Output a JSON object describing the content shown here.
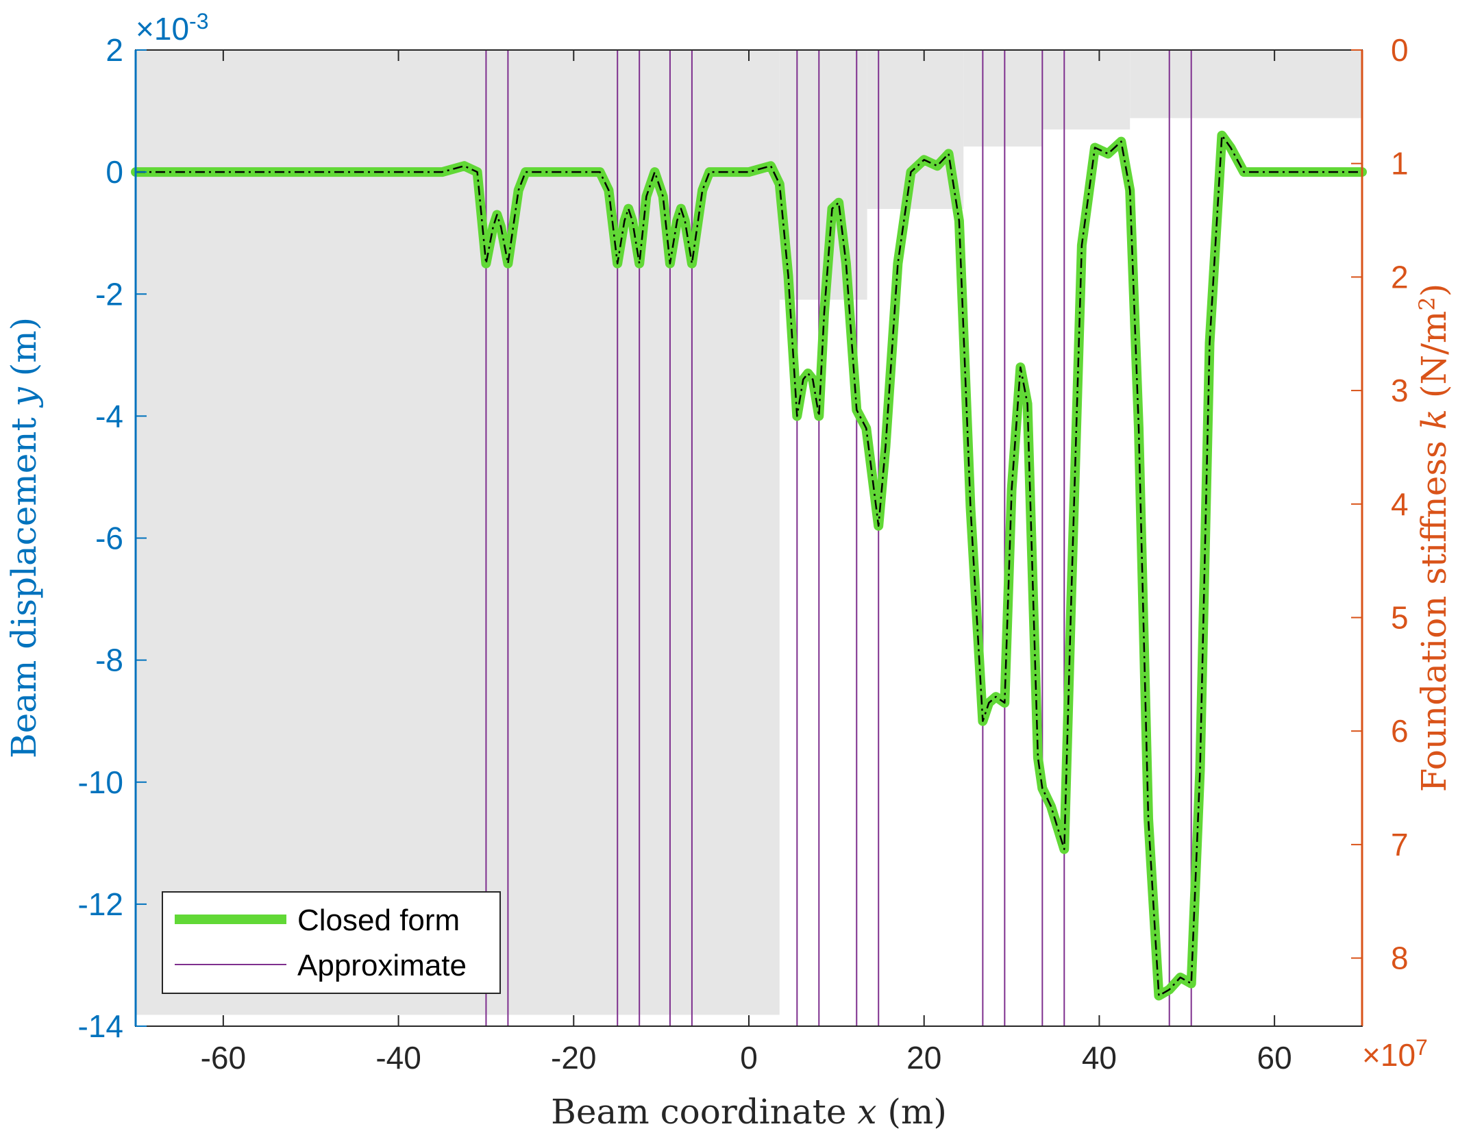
{
  "chart_data": {
    "type": "line",
    "xlabel": "Beam coordinate x (m)",
    "ylabel_left": "Beam displacement y (m)",
    "ylabel_right": "Foundation stiffness k (N/m²)",
    "xlim": [
      -70,
      70
    ],
    "ylim_left": [
      -0.014,
      0.002
    ],
    "ylim_right": [
      0,
      86000000.0
    ],
    "right_axis_reversed": true,
    "x_ticks": [
      "-60",
      "-40",
      "-20",
      "0",
      "20",
      "40",
      "60"
    ],
    "x_tick_values": [
      -60,
      -40,
      -20,
      0,
      20,
      40,
      60
    ],
    "left_ticks": [
      "2",
      "0",
      "-2",
      "-4",
      "-6",
      "-8",
      "-10",
      "-12",
      "-14"
    ],
    "left_tick_values": [
      2,
      0,
      -2,
      -4,
      -6,
      -8,
      -10,
      -12,
      -14
    ],
    "left_exponent_base": "×10",
    "left_exponent_power": "-3",
    "right_ticks": [
      "0",
      "1",
      "2",
      "3",
      "4",
      "5",
      "6",
      "7",
      "8"
    ],
    "right_tick_values": [
      0,
      1,
      2,
      3,
      4,
      5,
      6,
      7,
      8
    ],
    "right_exponent_base": "×10",
    "right_exponent_power": "7",
    "grid": false,
    "legend_position": "bottom-left",
    "stiffness_steps": [
      {
        "x0": -70,
        "x1": 3.5,
        "k": 85000000.0
      },
      {
        "x0": 3.5,
        "x1": 13.5,
        "k": 22000000.0
      },
      {
        "x0": 13.5,
        "x1": 24.5,
        "k": 14000000.0
      },
      {
        "x0": 24.5,
        "x1": 33.5,
        "k": 8500000.0
      },
      {
        "x0": 33.5,
        "x1": 43.5,
        "k": 7000000.0
      },
      {
        "x0": 43.5,
        "x1": 70,
        "k": 6000000.0
      }
    ],
    "load_positions": [
      -30,
      -27.5,
      -15,
      -12.5,
      -9,
      -6.5,
      5.5,
      8,
      12.3,
      14.8,
      26.7,
      29.2,
      33.5,
      36,
      48,
      50.5
    ],
    "series": [
      {
        "name": "Closed form",
        "color": "#61D836",
        "x": [
          -70,
          -35,
          -32.5,
          -31,
          -30,
          -29.2,
          -28.75,
          -28.3,
          -27.5,
          -26.3,
          -25.5,
          -24,
          -21,
          -17,
          -16,
          -15,
          -14.2,
          -13.75,
          -13.3,
          -12.5,
          -11.7,
          -10.75,
          -9.8,
          -9,
          -8.2,
          -7.75,
          -7.3,
          -6.5,
          -5.3,
          -4.5,
          -3,
          0,
          2.5,
          3.5,
          4.5,
          5.5,
          6.2,
          6.75,
          7.3,
          8,
          8.6,
          9.5,
          10.25,
          11.1,
          12.3,
          13.4,
          14.8,
          15.6,
          17,
          18.5,
          20,
          21.5,
          22.8,
          24,
          25.3,
          26.7,
          27.4,
          28.2,
          29.2,
          30,
          31,
          31.8,
          33,
          33.5,
          34.5,
          36,
          36.8,
          38,
          39.5,
          41,
          42.5,
          43.5,
          44.5,
          45.6,
          46.8,
          48,
          49.25,
          50.5,
          51.5,
          52.6,
          54,
          55,
          56.5,
          58,
          61,
          70
        ],
        "values": [
          0,
          0,
          0.0001,
          0,
          -0.0015,
          -0.0009,
          -0.0007,
          -0.0009,
          -0.0015,
          -0.0003,
          0,
          0,
          0,
          0,
          -0.0003,
          -0.0015,
          -0.0008,
          -0.0006,
          -0.0008,
          -0.0015,
          -0.0004,
          0,
          -0.0004,
          -0.0015,
          -0.0008,
          -0.0006,
          -0.0008,
          -0.0015,
          -0.0003,
          0,
          0,
          0,
          0.0001,
          -0.0002,
          -0.0017,
          -0.004,
          -0.0034,
          -0.0033,
          -0.0034,
          -0.004,
          -0.0023,
          -0.0006,
          -0.0005,
          -0.0015,
          -0.0039,
          -0.0042,
          -0.0058,
          -0.0045,
          -0.0015,
          0,
          0.0002,
          0.0001,
          0.0003,
          -0.0008,
          -0.0055,
          -0.009,
          -0.0087,
          -0.0086,
          -0.0087,
          -0.0052,
          -0.0032,
          -0.0038,
          -0.0096,
          -0.0101,
          -0.0104,
          -0.0111,
          -0.007,
          -0.0012,
          0.0004,
          0.0003,
          0.0005,
          -0.0003,
          -0.0042,
          -0.0106,
          -0.0135,
          -0.0134,
          -0.0132,
          -0.0133,
          -0.0098,
          -0.0028,
          0.0006,
          0.0004,
          0,
          0,
          0,
          0
        ]
      },
      {
        "name": "Approximate",
        "color": "#7E2F8E"
      }
    ]
  }
}
